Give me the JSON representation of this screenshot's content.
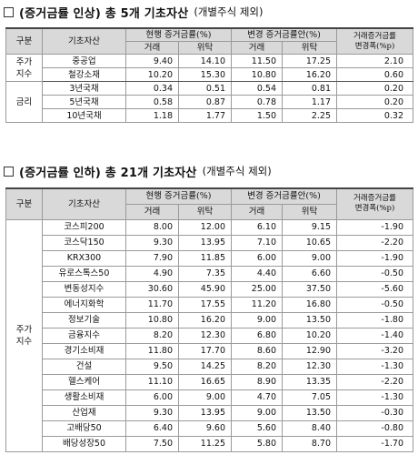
{
  "section1": {
    "title": "(증거금률 인상) 총 5개 기초자산",
    "subtitle": "(개별주식 제외)"
  },
  "section2": {
    "title": "(증거금률 인하) 총 21개 기초자산",
    "subtitle": "(개별주식 제외)"
  },
  "headers": {
    "category": "구분",
    "asset": "기초자산",
    "current": "현행 증거금률(%)",
    "proposed": "변경 증거금률안(%)",
    "trade": "거래",
    "consign": "위탁",
    "change_line1": "거래증거금률",
    "change_line2": "변경폭(%p)"
  },
  "table1": {
    "groups": [
      {
        "category": "주가\n지수",
        "rows": [
          {
            "name": "중공업",
            "cur_trade": "9.40",
            "cur_consign": "14.10",
            "new_trade": "11.50",
            "new_consign": "17.25",
            "change": "2.10"
          },
          {
            "name": "철강소재",
            "cur_trade": "10.20",
            "cur_consign": "15.30",
            "new_trade": "10.80",
            "new_consign": "16.20",
            "change": "0.60"
          }
        ]
      },
      {
        "category": "금리",
        "rows": [
          {
            "name": "3년국채",
            "cur_trade": "0.34",
            "cur_consign": "0.51",
            "new_trade": "0.54",
            "new_consign": "0.81",
            "change": "0.20"
          },
          {
            "name": "5년국채",
            "cur_trade": "0.58",
            "cur_consign": "0.87",
            "new_trade": "0.78",
            "new_consign": "1.17",
            "change": "0.20"
          },
          {
            "name": "10년국채",
            "cur_trade": "1.18",
            "cur_consign": "1.77",
            "new_trade": "1.50",
            "new_consign": "2.25",
            "change": "0.32"
          }
        ]
      }
    ]
  },
  "table2": {
    "category": "주가\n지수",
    "rows": [
      {
        "name": "코스피200",
        "cur_trade": "8.00",
        "cur_consign": "12.00",
        "new_trade": "6.10",
        "new_consign": "9.15",
        "change": "-1.90"
      },
      {
        "name": "코스닥150",
        "cur_trade": "9.30",
        "cur_consign": "13.95",
        "new_trade": "7.10",
        "new_consign": "10.65",
        "change": "-2.20"
      },
      {
        "name": "KRX300",
        "cur_trade": "7.90",
        "cur_consign": "11.85",
        "new_trade": "6.00",
        "new_consign": "9.00",
        "change": "-1.90"
      },
      {
        "name": "유로스톡스50",
        "cur_trade": "4.90",
        "cur_consign": "7.35",
        "new_trade": "4.40",
        "new_consign": "6.60",
        "change": "-0.50"
      },
      {
        "name": "변동성지수",
        "cur_trade": "30.60",
        "cur_consign": "45.90",
        "new_trade": "25.00",
        "new_consign": "37.50",
        "change": "-5.60"
      },
      {
        "name": "에너지화학",
        "cur_trade": "11.70",
        "cur_consign": "17.55",
        "new_trade": "11.20",
        "new_consign": "16.80",
        "change": "-0.50"
      },
      {
        "name": "정보기술",
        "cur_trade": "10.80",
        "cur_consign": "16.20",
        "new_trade": "9.00",
        "new_consign": "13.50",
        "change": "-1.80"
      },
      {
        "name": "금융지수",
        "cur_trade": "8.20",
        "cur_consign": "12.30",
        "new_trade": "6.80",
        "new_consign": "10.20",
        "change": "-1.40"
      },
      {
        "name": "경기소비재",
        "cur_trade": "11.80",
        "cur_consign": "17.70",
        "new_trade": "8.60",
        "new_consign": "12.90",
        "change": "-3.20"
      },
      {
        "name": "건설",
        "cur_trade": "9.50",
        "cur_consign": "14.25",
        "new_trade": "8.20",
        "new_consign": "12.30",
        "change": "-1.30"
      },
      {
        "name": "헬스케어",
        "cur_trade": "11.10",
        "cur_consign": "16.65",
        "new_trade": "8.90",
        "new_consign": "13.35",
        "change": "-2.20"
      },
      {
        "name": "생활소비재",
        "cur_trade": "6.00",
        "cur_consign": "9.00",
        "new_trade": "4.70",
        "new_consign": "7.05",
        "change": "-1.30"
      },
      {
        "name": "산업재",
        "cur_trade": "9.30",
        "cur_consign": "13.95",
        "new_trade": "9.00",
        "new_consign": "13.50",
        "change": "-0.30"
      },
      {
        "name": "고배당50",
        "cur_trade": "6.40",
        "cur_consign": "9.60",
        "new_trade": "5.60",
        "new_consign": "8.40",
        "change": "-0.80"
      },
      {
        "name": "배당성장50",
        "cur_trade": "7.50",
        "cur_consign": "11.25",
        "new_trade": "5.80",
        "new_consign": "8.70",
        "change": "-1.70"
      }
    ]
  }
}
